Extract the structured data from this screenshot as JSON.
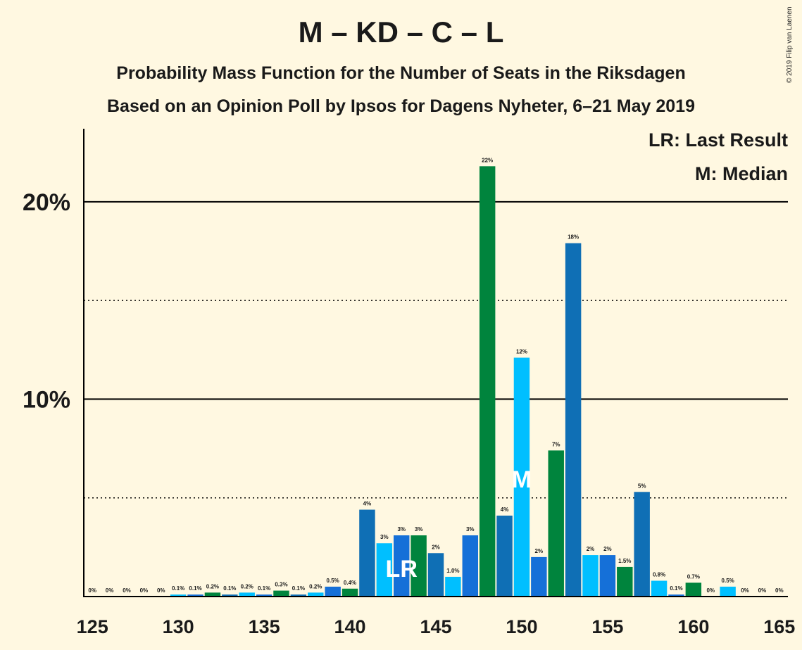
{
  "header": {
    "title": "M – KD – C – L",
    "subtitle1": "Probability Mass Function for the Number of Seats in the Riksdagen",
    "subtitle2": "Based on an Opinion Poll by Ipsos for Dagens Nyheter, 6–21 May 2019",
    "legend_lr": "LR: Last Result",
    "legend_m": "M: Median",
    "copyright": "© 2019 Filip van Laenen"
  },
  "colors": {
    "background": "#FFF8E1",
    "palette": [
      "#0F6FB5",
      "#00BFFF",
      "#1570D8",
      "#00843D"
    ]
  },
  "chart_data": {
    "type": "bar",
    "x": [
      125,
      126,
      127,
      128,
      129,
      130,
      131,
      132,
      133,
      134,
      135,
      136,
      137,
      138,
      139,
      140,
      141,
      142,
      143,
      144,
      145,
      146,
      147,
      148,
      149,
      150,
      151,
      152,
      153,
      154,
      155,
      156,
      157,
      158,
      159,
      160,
      161,
      162,
      163,
      164,
      165
    ],
    "values": [
      0,
      0,
      0,
      0,
      0,
      0.1,
      0.1,
      0.2,
      0.1,
      0.2,
      0.1,
      0.3,
      0.1,
      0.2,
      0.5,
      0.4,
      4.4,
      2.7,
      3.1,
      3.1,
      2.2,
      1.0,
      3.1,
      21.8,
      4.1,
      12.1,
      2.0,
      7.4,
      17.9,
      2.1,
      2.1,
      1.5,
      5.3,
      0.8,
      0.1,
      0.7,
      0,
      0.5,
      0,
      0,
      0
    ],
    "labels": [
      "0%",
      "0%",
      "0%",
      "0%",
      "0%",
      "0.1%",
      "0.1%",
      "0.2%",
      "0.1%",
      "0.2%",
      "0.1%",
      "0.3%",
      "0.1%",
      "0.2%",
      "0.5%",
      "0.4%",
      "4%",
      "3%",
      "3%",
      "3%",
      "2%",
      "1.0%",
      "3%",
      "22%",
      "4%",
      "12%",
      "2%",
      "7%",
      "18%",
      "2%",
      "2%",
      "1.5%",
      "5%",
      "0.8%",
      "0.1%",
      "0.7%",
      "0%",
      "0.5%",
      "0%",
      "0%",
      "0%"
    ],
    "color_index": [
      0,
      1,
      2,
      3,
      0,
      1,
      2,
      3,
      0,
      1,
      2,
      3,
      0,
      1,
      2,
      3,
      0,
      1,
      2,
      3,
      0,
      1,
      2,
      3,
      0,
      1,
      2,
      3,
      0,
      1,
      2,
      3,
      0,
      1,
      2,
      3,
      0,
      1,
      2,
      3,
      0
    ],
    "xticks": [
      "125",
      "130",
      "135",
      "140",
      "145",
      "150",
      "155",
      "160",
      "165"
    ],
    "yticks": [
      "10%",
      "20%"
    ],
    "ylim": [
      0,
      23.7
    ],
    "xlim": [
      124.5,
      165.5
    ],
    "solid_gridlines": [
      10,
      20
    ],
    "dotted_gridlines": [
      5,
      15
    ],
    "last_result": {
      "seat": 143,
      "label": "LR"
    },
    "median": {
      "seat": 150,
      "label": "M"
    }
  }
}
